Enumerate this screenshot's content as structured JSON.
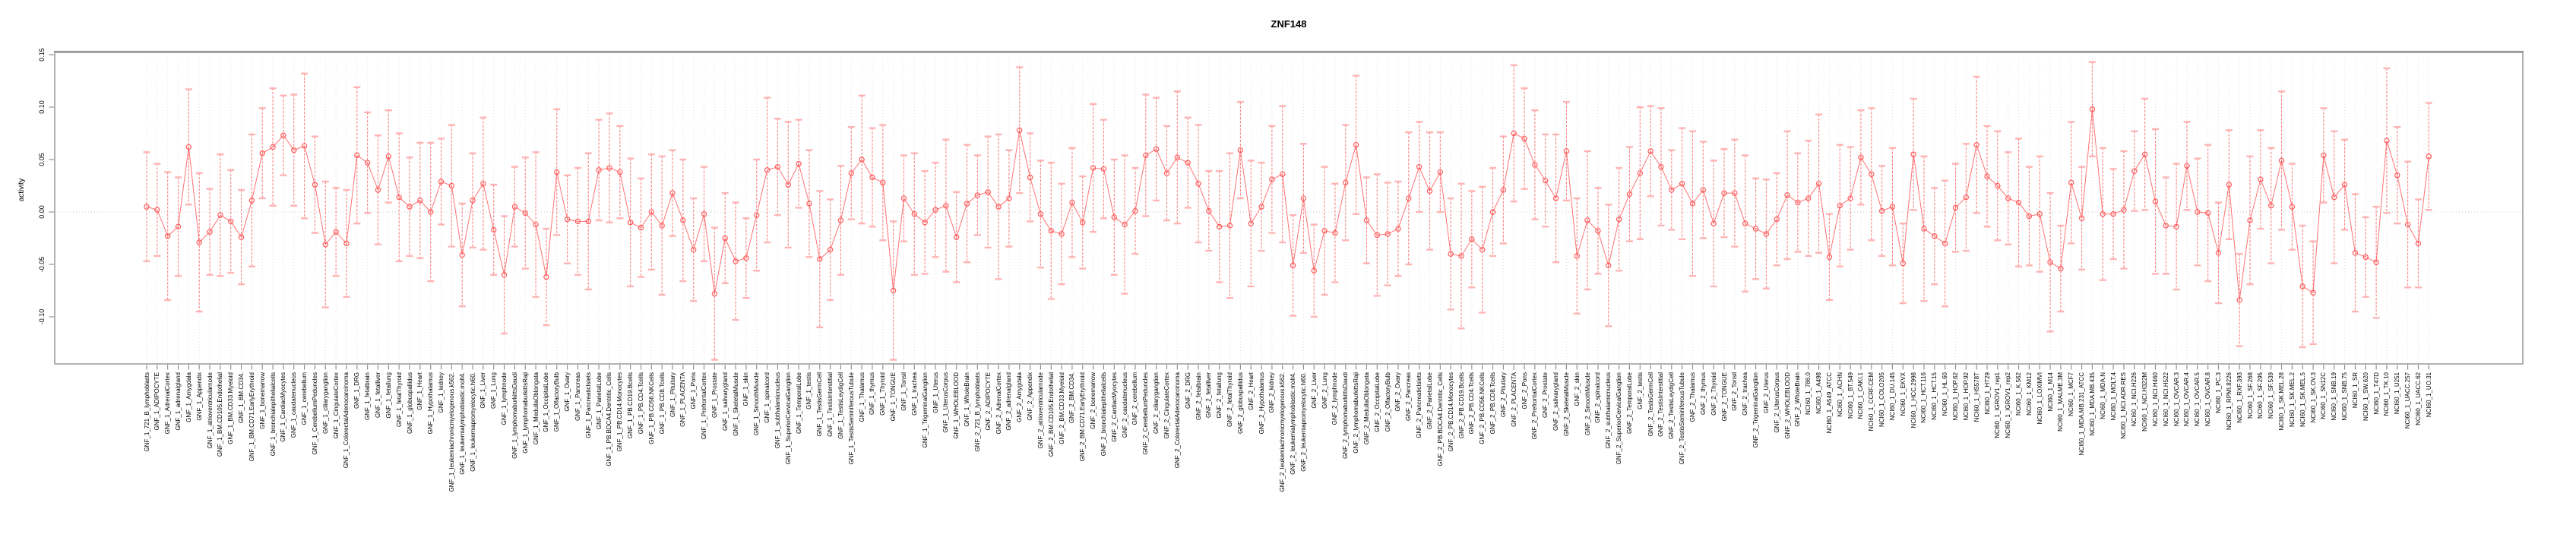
{
  "chart_data": {
    "type": "scatter",
    "title": "ZNF148",
    "ylabel": "activity",
    "xlabel": "",
    "ylim": [
      -0.145,
      0.151
    ],
    "yticks": [
      0.15,
      0.1,
      0.05,
      0.0,
      -0.05,
      -0.1
    ],
    "ytick_labels": [
      "0.15",
      "0.10",
      "0.05",
      "0.00",
      "-0.05",
      "-0.10"
    ],
    "grid": "dotted vertical gridline per category; dotted horizontal line at 0",
    "legend": "none",
    "marker": "open-circle with dashed error bars, capped ends, points connected by line",
    "colors": {
      "series": "#ff5a5a",
      "error_caps": "#ffb0b0",
      "gridline": "#dedede",
      "zero_line": "#c8c8c8",
      "panel_border": "#999999",
      "tick": "#888888",
      "text": "#000000"
    },
    "groups": [
      {
        "prefix": "GNF_1_",
        "tissues": [
          "721_B_lymphoblasts",
          "ADIPOCYTE",
          "AdrenalCortex",
          "adrenalgland",
          "Amygdala",
          "Appendix",
          "atrioventricularnode",
          "BM.CD105.Endothelial",
          "BM.CD33.Myeloid",
          "BM.CD34.",
          "BM.CD71.EarlyErythroid",
          "bonemarrow",
          "bronchialepithelialcells",
          "CardiacMyocytes",
          "caudatenucleus",
          "cerebellum",
          "CerebellumPeduncles",
          "ciliaryganglion",
          "CingulateCortex",
          "ColorectalAdenocarcinoma",
          "DRG",
          "fetalbrain",
          "fetalliver",
          "fetallung",
          "fetalThyroid",
          "globuspallidus",
          "Heart",
          "Hypothalamus",
          "kidney",
          "leukemiachronicmyelogenous.k562.",
          "leukemialymphoblastic.molt4.",
          "leukemiapromyelocytic.hl60.",
          "Liver",
          "Lung",
          "lymphnode",
          "lymphomaburkittsDaudi",
          "lymphomaburkittsRaji",
          "MedullaOblongata",
          "OccipitalLobe",
          "OlfactoryBulb",
          "Ovary",
          "Pancreas",
          "PancreaticIslets",
          "ParietalLobe",
          "PB.BDCA4.Dentritic_Cells",
          "PB.CD14.Monocytes",
          "PB.CD19.Bcells",
          "PB.CD4.Tcells",
          "PB.CD56.NKCells",
          "PB.CD8.Tcells",
          "Pituitary",
          "PLACENTA",
          "Pons",
          "PrefrontalCortex",
          "Prostate",
          "salivarygland",
          "SkeletalMuscle",
          "skin",
          "SmoothMuscle",
          "spinalcord",
          "subthalamicnucleus",
          "SuperiorCervicalGanglion",
          "TemporalLobe",
          "testis",
          "TestisGermCell",
          "TestisInterstitial",
          "TestisLeydigCell",
          "TestisSeminiferousTubule",
          "Thalamus",
          "thymus",
          "Thyroid",
          "TONGUE",
          "Tonsil",
          "trachea",
          "TrigeminalGanglion",
          "Uterus",
          "UterusCorpus",
          "WHOLEBLOOD",
          "WholeBrain"
        ]
      },
      {
        "prefix": "GNF_2_",
        "tissues": [
          "721_B_lymphoblasts",
          "ADIPOCYTE",
          "AdrenalCortex",
          "adrenalgland",
          "Amygdala",
          "Appendix",
          "atrioventricularnode",
          "BM.CD105.Endothelial",
          "BM.CD33.Myeloid",
          "BM.CD34.",
          "BM.CD71.EarlyErythroid",
          "bonemarrow",
          "bronchialepithelialcells",
          "CardiacMyocytes",
          "caudatenucleus",
          "cerebellum",
          "CerebellumPeduncles",
          "ciliaryganglion",
          "CingulateCortex",
          "ColorectalAdenocarcinoma",
          "DRG",
          "fetalbrain",
          "fetalliver",
          "fetallung",
          "fetalThyroid",
          "globuspallidus",
          "Heart",
          "Hypothalamus",
          "kidney",
          "leukemiachronicmyelogenous.k562.",
          "leukemialymphoblastic.molt4.",
          "leukemiapromyelocytic.hl60.",
          "Liver",
          "Lung",
          "lymphnode",
          "lymphomaburkittsDaudi",
          "lymphomaburkittsRaji",
          "MedullaOblongata",
          "OccipitalLobe",
          "OlfactoryBulb",
          "Ovary",
          "Pancreas",
          "PancreaticIslets",
          "ParietalLobe",
          "PB.BDCA4.Dentritic_Cells",
          "PB.CD14.Monocytes",
          "PB.CD19.Bcells",
          "PB.CD4.Tcells",
          "PB.CD56.NKCells",
          "PB.CD8.Tcells",
          "Pituitary",
          "PLACENTA",
          "Pons",
          "PrefrontalCortex",
          "Prostate",
          "salivarygland",
          "SkeletalMuscle",
          "skin",
          "SmoothMuscle",
          "spinalcord",
          "subthalamicnucleus",
          "SuperiorCervicalGanglion",
          "TemporalLobe",
          "testis",
          "TestisGermCell",
          "TestisInterstitial",
          "TestisLeydigCell",
          "TestisSeminiferousTubule",
          "Thalamus",
          "thymus",
          "Thyroid",
          "TONGUE",
          "Tonsil",
          "trachea",
          "TrigeminalGanglion",
          "Uterus",
          "UterusCorpus",
          "WHOLEBLOOD",
          "WholeBrain"
        ]
      },
      {
        "prefix": "NCI60_1_",
        "tissues": [
          "786.0",
          "A498",
          "A549_ATCC",
          "ACHN",
          "BT.549",
          "CAKI.1",
          "CCRF.CEM",
          "COLO205",
          "DU.145",
          "EKVX",
          "HCC.2998",
          "HCT.116",
          "HCT.15",
          "HL.60",
          "HOP.62",
          "HOP.92",
          "HS578T",
          "HT29",
          "IGROV1_rep1",
          "IGROV1_rep2",
          "K.562",
          "KM12",
          "LOXIMVI",
          "M14",
          "MALME.3M",
          "MCF7",
          "MDA.MB.231_ATCC",
          "MDA.MB.435",
          "MDA.N",
          "MOLT.4",
          "NCI.ADR.RES",
          "NCI.H226",
          "NCI.H322M",
          "NCI.H460",
          "NCI.H522",
          "OVCAR.3",
          "OVCAR.4",
          "OVCAR.5",
          "OVCAR.8",
          "PC.3",
          "RPMI.8226",
          "RXF.393",
          "SF.268",
          "SF.295",
          "SF.539",
          "SK.MEL.28",
          "SK.MEL.2",
          "SK.MEL.5",
          "SK.OV.3",
          "SN12C",
          "SNB.19",
          "SNB.75",
          "SR",
          "SW.620",
          "T47D",
          "TK.10",
          "U251",
          "UACC.257",
          "UACC.62",
          "UO.31"
        ]
      }
    ],
    "values": [
      0.005,
      0.002,
      -0.023,
      -0.014,
      0.062,
      -0.029,
      -0.019,
      -0.003,
      -0.009,
      -0.024,
      0.011,
      0.056,
      0.062,
      0.073,
      0.059,
      0.063,
      0.026,
      -0.031,
      -0.019,
      -0.03,
      0.054,
      0.047,
      0.021,
      0.053,
      0.014,
      0.005,
      0.011,
      0.0,
      0.029,
      0.025,
      -0.041,
      0.011,
      0.027,
      -0.017,
      -0.06,
      0.005,
      -0.001,
      -0.012,
      -0.062,
      0.038,
      -0.007,
      -0.009,
      -0.009,
      0.04,
      0.042,
      0.038,
      -0.01,
      -0.015,
      0.0,
      -0.013,
      0.018,
      -0.008,
      -0.036,
      -0.002,
      -0.078,
      -0.025,
      -0.047,
      -0.044,
      -0.003,
      0.04,
      0.043,
      0.026,
      0.046,
      0.008,
      -0.045,
      -0.036,
      -0.008,
      0.037,
      0.05,
      0.033,
      0.028,
      -0.075,
      0.013,
      -0.002,
      -0.01,
      0.002,
      0.006,
      -0.024,
      0.008,
      0.016,
      0.019,
      0.005,
      0.013,
      0.078,
      0.033,
      -0.002,
      -0.018,
      -0.021,
      0.009,
      -0.01,
      0.042,
      0.041,
      -0.005,
      -0.012,
      0.001,
      0.054,
      0.06,
      0.037,
      0.052,
      0.047,
      0.027,
      0.001,
      -0.014,
      -0.013,
      0.059,
      -0.011,
      0.005,
      0.031,
      0.036,
      -0.051,
      0.013,
      -0.056,
      -0.018,
      -0.02,
      0.028,
      0.064,
      -0.008,
      -0.022,
      -0.021,
      -0.016,
      0.013,
      0.043,
      0.02,
      0.038,
      -0.04,
      -0.042,
      -0.026,
      -0.036,
      0.0,
      0.021,
      0.075,
      0.07,
      0.045,
      0.03,
      0.013,
      0.058,
      -0.042,
      -0.008,
      -0.018,
      -0.051,
      -0.007,
      0.017,
      0.037,
      0.058,
      0.043,
      0.021,
      0.027,
      0.008,
      0.021,
      -0.011,
      0.018,
      0.018,
      -0.011,
      -0.016,
      -0.021,
      -0.007,
      0.016,
      0.009,
      0.013,
      0.027,
      -0.043,
      0.006,
      0.013,
      0.052,
      0.036,
      0.001,
      0.005,
      -0.049,
      0.055,
      -0.016,
      -0.023,
      -0.03,
      0.004,
      0.014,
      0.064,
      0.034,
      0.025,
      0.013,
      0.009,
      -0.004,
      -0.002,
      -0.048,
      -0.054,
      0.028,
      -0.006,
      0.098,
      -0.002,
      -0.002,
      0.002,
      0.039,
      0.055,
      0.01,
      -0.013,
      -0.014,
      0.044,
      0.0,
      -0.001,
      -0.039,
      0.026,
      -0.084,
      -0.008,
      0.031,
      0.006,
      0.049,
      0.005,
      -0.071,
      -0.077,
      0.054,
      0.014,
      0.026,
      -0.039,
      -0.043,
      -0.048,
      0.068,
      0.035,
      -0.012,
      -0.03,
      0.053
    ],
    "errors": [
      0.052,
      0.044,
      0.061,
      0.047,
      0.055,
      0.066,
      0.041,
      0.058,
      0.049,
      0.045,
      0.063,
      0.043,
      0.056,
      0.038,
      0.053,
      0.069,
      0.046,
      0.06,
      0.042,
      0.051,
      0.065,
      0.048,
      0.052,
      0.044,
      0.061,
      0.047,
      0.055,
      0.066,
      0.041,
      0.058,
      0.049,
      0.045,
      0.063,
      0.043,
      0.056,
      0.038,
      0.053,
      0.069,
      0.046,
      0.06,
      0.042,
      0.051,
      0.065,
      0.048,
      0.052,
      0.044,
      0.061,
      0.047,
      0.055,
      0.066,
      0.041,
      0.058,
      0.049,
      0.045,
      0.063,
      0.043,
      0.056,
      0.038,
      0.053,
      0.069,
      0.046,
      0.06,
      0.042,
      0.051,
      0.065,
      0.048,
      0.052,
      0.044,
      0.061,
      0.047,
      0.055,
      0.066,
      0.041,
      0.058,
      0.049,
      0.045,
      0.063,
      0.043,
      0.056,
      0.038,
      0.053,
      0.069,
      0.046,
      0.06,
      0.042,
      0.051,
      0.065,
      0.048,
      0.052,
      0.044,
      0.061,
      0.047,
      0.055,
      0.066,
      0.041,
      0.058,
      0.049,
      0.045,
      0.063,
      0.043,
      0.056,
      0.038,
      0.053,
      0.069,
      0.046,
      0.06,
      0.042,
      0.051,
      0.065,
      0.048,
      0.052,
      0.044,
      0.061,
      0.047,
      0.055,
      0.066,
      0.041,
      0.058,
      0.049,
      0.045,
      0.063,
      0.043,
      0.056,
      0.038,
      0.053,
      0.069,
      0.046,
      0.06,
      0.042,
      0.051,
      0.065,
      0.048,
      0.052,
      0.044,
      0.061,
      0.047,
      0.055,
      0.066,
      0.041,
      0.058,
      0.049,
      0.045,
      0.063,
      0.043,
      0.056,
      0.038,
      0.053,
      0.069,
      0.046,
      0.06,
      0.042,
      0.051,
      0.065,
      0.048,
      0.052,
      0.044,
      0.061,
      0.047,
      0.055,
      0.066,
      0.041,
      0.058,
      0.049,
      0.045,
      0.063,
      0.043,
      0.056,
      0.038,
      0.053,
      0.069,
      0.046,
      0.06,
      0.042,
      0.051,
      0.065,
      0.048,
      0.052,
      0.044,
      0.061,
      0.047,
      0.055,
      0.066,
      0.041,
      0.058,
      0.049,
      0.045,
      0.063,
      0.043,
      0.056,
      0.038,
      0.053,
      0.069,
      0.046,
      0.06,
      0.042,
      0.051,
      0.065,
      0.048,
      0.052,
      0.044,
      0.061,
      0.047,
      0.055,
      0.066,
      0.041,
      0.058,
      0.049,
      0.045,
      0.063,
      0.043,
      0.056,
      0.038,
      0.053,
      0.069,
      0.046,
      0.06,
      0.042,
      0.051
    ]
  }
}
